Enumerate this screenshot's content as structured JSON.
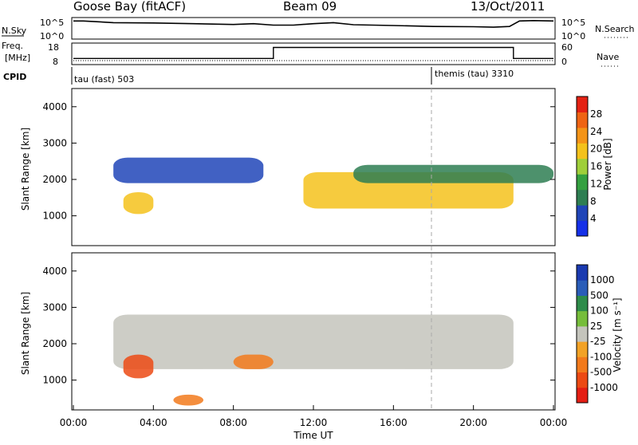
{
  "header": {
    "title": "Goose Bay (fitACF)",
    "beam": "Beam 09",
    "date": "13/Oct/2011"
  },
  "noise_panel": {
    "left_label": "N.Sky",
    "right_label": "N.Search",
    "left_ticks": [
      "10^5",
      "10^0"
    ],
    "right_ticks": [
      "10^5",
      "10^0"
    ]
  },
  "freq_panel": {
    "left_label_top": "Freq.",
    "left_label_bottom": "[MHz]",
    "right_label": "Nave",
    "left_ticks": [
      "18",
      "8"
    ],
    "right_ticks": [
      "60",
      "0"
    ]
  },
  "cpid_panel": {
    "label": "CPID",
    "modes": [
      "tau (fast) 503",
      "themis (tau) 3310"
    ]
  },
  "x_axis": {
    "label": "Time UT",
    "tick_labels": [
      "00:00",
      "04:00",
      "08:00",
      "12:00",
      "16:00",
      "20:00",
      "00:00"
    ]
  },
  "colors": {
    "power_scale": [
      "#1530e8",
      "#2045b8",
      "#2e7e52",
      "#34a040",
      "#9fcf3a",
      "#f4c21c",
      "#f49418",
      "#ef6414",
      "#e42214"
    ],
    "velocity_scale": [
      "#1a3ab0",
      "#2a5db8",
      "#2e8c4a",
      "#76bd3b",
      "#c4c4bc",
      "#f2a226",
      "#f27a1c",
      "#ec4a14",
      "#e41e14"
    ],
    "ground_scatter": "#c4c4bc"
  },
  "chart_data": [
    {
      "type": "line",
      "title": "N.Sky",
      "ylabel": "N.Sky",
      "y_scale": "log",
      "ylim": [
        1,
        100000
      ],
      "x_hours": [
        0,
        0.5,
        2,
        4,
        6,
        8,
        9,
        10,
        11,
        12,
        13,
        14,
        16,
        18,
        20,
        21,
        21.8,
        22.3,
        23,
        24
      ],
      "values": [
        30000,
        30000,
        10000,
        8000,
        5000,
        3000,
        5000,
        2000,
        2000,
        5000,
        10000,
        2500,
        1500,
        800,
        700,
        500,
        800,
        30000,
        40000,
        30000
      ]
    },
    {
      "type": "line",
      "title": "Freq.",
      "ylabel": "[MHz]",
      "ylim": [
        8,
        18
      ],
      "x_hours": [
        0,
        10,
        10,
        22,
        22,
        24
      ],
      "values": [
        10.5,
        10.5,
        16.5,
        16.5,
        10.5,
        10.5
      ]
    },
    {
      "type": "heatmap",
      "title": "Power [dB]",
      "ylabel": "Slant Range [km]",
      "xlabel": "",
      "ylim": [
        180,
        4500
      ],
      "y_ticks": [
        1000,
        2000,
        3000,
        4000
      ],
      "colorbar_label": "Power [dB]",
      "colorbar_ticks": [
        4,
        8,
        12,
        16,
        20,
        24,
        28
      ],
      "features": [
        {
          "name": "upper band",
          "start_hour": 2,
          "end_hour": 9.5,
          "range_km": [
            1900,
            2600
          ],
          "level_db": 5
        },
        {
          "name": "E-region patch",
          "start_hour": 2.5,
          "end_hour": 4,
          "range_km": [
            1050,
            1650
          ],
          "level_db": 18
        },
        {
          "name": "main echo",
          "start_hour": 11.5,
          "end_hour": 22,
          "range_km": [
            1200,
            2200
          ],
          "level_db": 19
        },
        {
          "name": "upper fringe",
          "start_hour": 14,
          "end_hour": 24,
          "range_km": [
            1900,
            2400
          ],
          "level_db": 6
        }
      ]
    },
    {
      "type": "heatmap",
      "title": "Velocity [m s-1]",
      "ylabel": "Slant Range [km]",
      "xlabel": "Time UT",
      "ylim": [
        180,
        4500
      ],
      "y_ticks": [
        1000,
        2000,
        3000,
        4000
      ],
      "colorbar_label": "Velocity [m s⁻¹]",
      "colorbar_ticks": [
        1000,
        500,
        100,
        25,
        -25,
        -100,
        -500,
        -1000
      ],
      "features": [
        {
          "name": "ground scatter band",
          "start_hour": 2,
          "end_hour": 22,
          "range_km": [
            1300,
            2800
          ],
          "velocity": 0
        },
        {
          "name": "negative-velocity patch",
          "start_hour": 2.5,
          "end_hour": 4,
          "range_km": [
            1050,
            1700
          ],
          "velocity": -300
        },
        {
          "name": "orange patch",
          "start_hour": 8,
          "end_hour": 10,
          "range_km": [
            1300,
            1700
          ],
          "velocity": -200
        },
        {
          "name": "low-range feature",
          "start_hour": 5,
          "end_hour": 6.5,
          "range_km": [
            300,
            600
          ],
          "velocity": -150
        }
      ]
    }
  ]
}
